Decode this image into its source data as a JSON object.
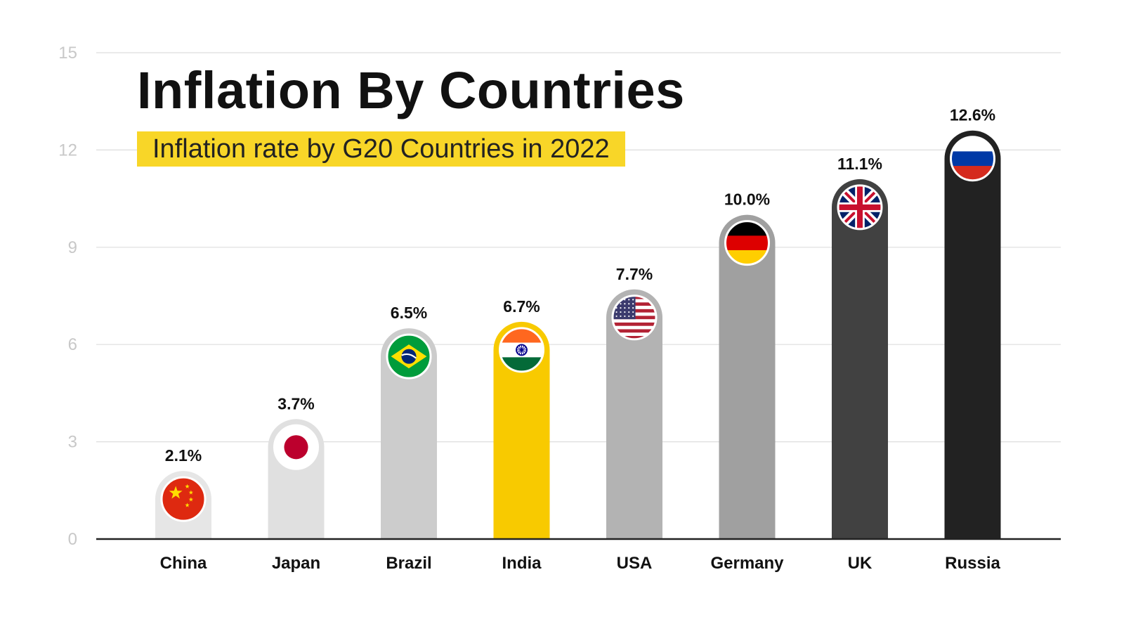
{
  "chart_data": {
    "type": "bar",
    "title": "Inflation By Countries",
    "subtitle": "Inflation rate by G20 Countries in 2022",
    "xlabel": "",
    "ylabel": "",
    "ylim": [
      0,
      15
    ],
    "yticks": [
      0,
      3,
      6,
      9,
      12,
      15
    ],
    "grid": true,
    "categories": [
      "China",
      "Japan",
      "Brazil",
      "India",
      "USA",
      "Germany",
      "UK",
      "Russia"
    ],
    "values": [
      2.1,
      3.7,
      6.5,
      6.7,
      7.7,
      10.0,
      11.1,
      12.6
    ],
    "value_labels": [
      "2.1%",
      "3.7%",
      "6.5%",
      "6.7%",
      "7.7%",
      "10.0%",
      "11.1%",
      "12.6%"
    ],
    "bar_colors": [
      "#e6e6e6",
      "#e0e0e0",
      "#cccccc",
      "#f8ca00",
      "#b3b3b3",
      "#a0a0a0",
      "#414141",
      "#222222"
    ],
    "flag_icons": [
      "china-flag-icon",
      "japan-flag-icon",
      "brazil-flag-icon",
      "india-flag-icon",
      "usa-flag-icon",
      "germany-flag-icon",
      "uk-flag-icon",
      "russia-flag-icon"
    ]
  },
  "colors": {
    "highlight": "#f8d628",
    "grid": "#dddddd",
    "axis": "#222222",
    "tick_label": "#c8c8c8"
  }
}
